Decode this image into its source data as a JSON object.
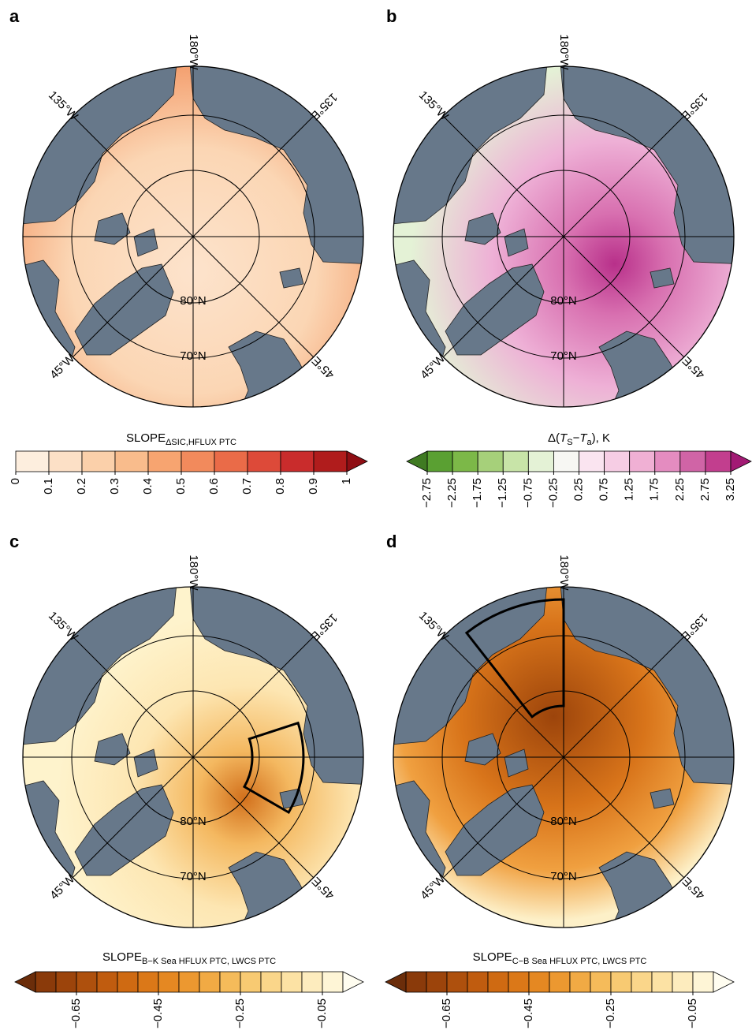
{
  "panels": [
    {
      "label": "a",
      "meridians": [
        "180°W",
        "135°W",
        "135°E",
        "45°W",
        "45°E"
      ],
      "parallels": [
        "80°N",
        "70°N"
      ],
      "colorbar": {
        "title": [
          {
            "text": "SLOPE"
          },
          {
            "text": "ΔSIC,HFLUX PTC",
            "style": "sub"
          }
        ],
        "lim": [
          0,
          1
        ],
        "ticks": [
          0,
          0.1,
          0.2,
          0.3,
          0.4,
          0.5,
          0.6,
          0.7,
          0.8,
          0.9,
          1
        ],
        "colors": [
          "#fdeede",
          "#fce0c6",
          "#fbd0aa",
          "#f9bc8c",
          "#f7a470",
          "#f28a5c",
          "#ea6b48",
          "#dd4a39",
          "#c92c2c",
          "#b01c1c"
        ],
        "over_color": "#8f0e14"
      }
    },
    {
      "label": "b",
      "meridians": [
        "180°W",
        "135°W",
        "135°E",
        "45°W",
        "45°E"
      ],
      "parallels": [
        "80°N",
        "70°N"
      ],
      "colorbar": {
        "title": [
          {
            "text": "Δ("
          },
          {
            "text": "T",
            "style": "italic"
          },
          {
            "text": "S",
            "style": "sub"
          },
          {
            "text": "−"
          },
          {
            "text": "T",
            "style": "italic"
          },
          {
            "text": "a",
            "style": "sub"
          },
          {
            "text": "), K"
          }
        ],
        "lim": [
          -2.75,
          3.25
        ],
        "ticks": [
          {
            "value": -2.75,
            "label": "−2.75"
          },
          {
            "value": -2.25,
            "label": "−2.25"
          },
          {
            "value": -1.75,
            "label": "−1.75"
          },
          {
            "value": -1.25,
            "label": "−1.25"
          },
          {
            "value": -0.75,
            "label": "−0.75"
          },
          {
            "value": -0.25,
            "label": "−0.25"
          },
          0.25,
          0.75,
          1.25,
          1.75,
          2.25,
          2.75,
          3.25
        ],
        "colors": [
          "#5aa032",
          "#7cb848",
          "#a6d07a",
          "#c8e4a8",
          "#e4f2d6",
          "#f7f7f3",
          "#fae4f0",
          "#f6cde4",
          "#f0b0d4",
          "#e48cc0",
          "#d064a6",
          "#c23e8e"
        ],
        "under_color": "#3f7a22",
        "over_color": "#a21a74"
      }
    },
    {
      "label": "c",
      "meridians": [
        "180°W",
        "135°W",
        "135°E",
        "45°W",
        "45°E"
      ],
      "parallels": [
        "80°N",
        "70°N"
      ],
      "colorbar": {
        "title": [
          {
            "text": "SLOPE"
          },
          {
            "text": "B−K Sea HFLUX PTC, LWCS PTC",
            "style": "sub"
          }
        ],
        "lim": [
          -0.75,
          0
        ],
        "ticks": [
          {
            "value": -0.65,
            "label": "−0.65"
          },
          {
            "value": -0.45,
            "label": "−0.45"
          },
          {
            "value": -0.25,
            "label": "−0.25"
          },
          {
            "value": -0.05,
            "label": "−0.05"
          }
        ],
        "colors": [
          "#8a3a0a",
          "#9c440b",
          "#ae500d",
          "#c05c0f",
          "#cf6a12",
          "#db7818",
          "#e58822",
          "#ec9830",
          "#f1aa44",
          "#f5bb5a",
          "#f8ca72",
          "#fad68a",
          "#fce2a4",
          "#fdecbe",
          "#fef5d6"
        ],
        "under_color": "#6b2d0a",
        "over_color": "#fffdf0"
      }
    },
    {
      "label": "d",
      "meridians": [
        "180°W",
        "135°W",
        "135°E",
        "45°W",
        "45°E"
      ],
      "parallels": [
        "80°N",
        "70°N"
      ],
      "colorbar": {
        "title": [
          {
            "text": "SLOPE"
          },
          {
            "text": "C−B Sea HFLUX PTC, LWCS PTC",
            "style": "sub"
          }
        ],
        "lim": [
          -0.75,
          0
        ],
        "ticks": [
          {
            "value": -0.65,
            "label": "−0.65"
          },
          {
            "value": -0.45,
            "label": "−0.45"
          },
          {
            "value": -0.25,
            "label": "−0.25"
          },
          {
            "value": -0.05,
            "label": "−0.05"
          }
        ],
        "colors": [
          "#8a3a0a",
          "#9c440b",
          "#ae500d",
          "#c05c0f",
          "#cf6a12",
          "#db7818",
          "#e58822",
          "#ec9830",
          "#f1aa44",
          "#f5bb5a",
          "#f8ca72",
          "#fad68a",
          "#fce2a4",
          "#fdecbe",
          "#fef5d6"
        ],
        "under_color": "#6b2d0a",
        "over_color": "#fffdf0"
      }
    }
  ]
}
